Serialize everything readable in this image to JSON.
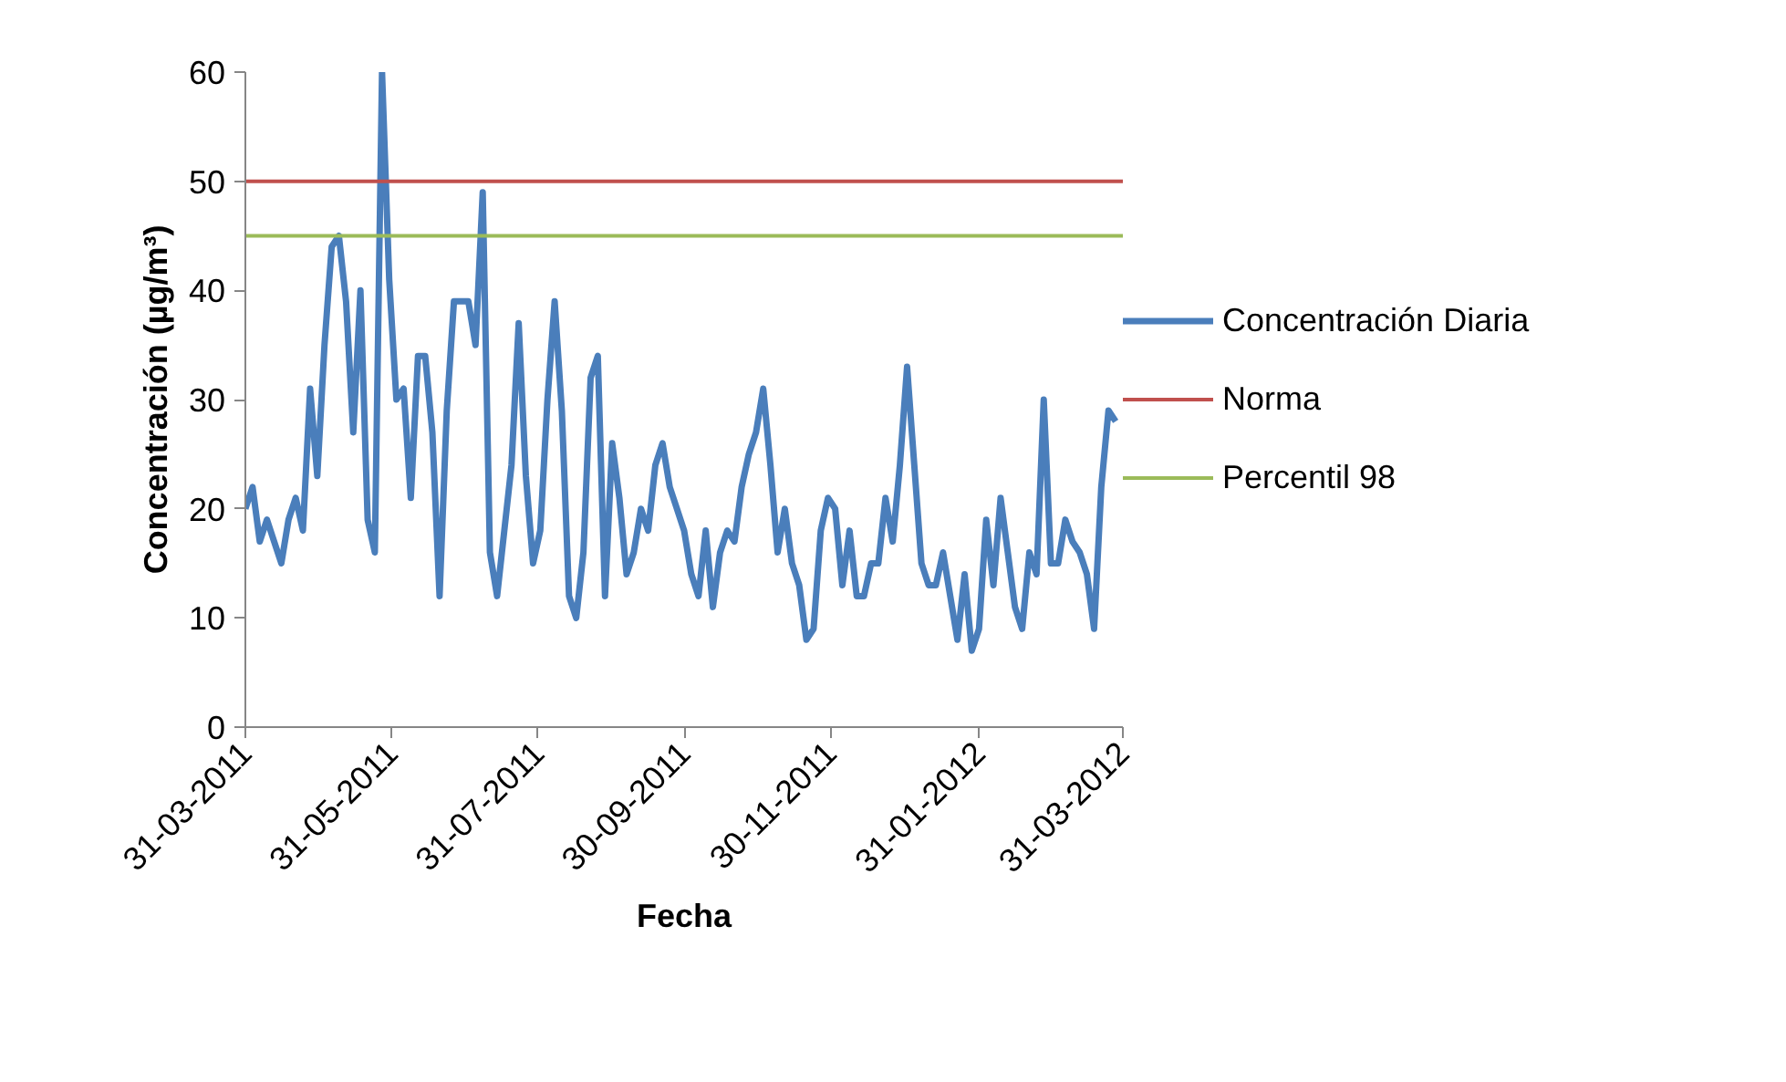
{
  "chart_data": {
    "type": "line",
    "xlabel": "Fecha",
    "ylabel": "Concentración (µg/m³)",
    "x": [
      "2011-03-31",
      "2011-04-03",
      "2011-04-06",
      "2011-04-09",
      "2011-04-12",
      "2011-04-15",
      "2011-04-18",
      "2011-04-21",
      "2011-04-24",
      "2011-04-27",
      "2011-04-30",
      "2011-05-03",
      "2011-05-06",
      "2011-05-09",
      "2011-05-12",
      "2011-05-15",
      "2011-05-18",
      "2011-05-21",
      "2011-05-24",
      "2011-05-27",
      "2011-05-30",
      "2011-06-02",
      "2011-06-05",
      "2011-06-08",
      "2011-06-11",
      "2011-06-14",
      "2011-06-17",
      "2011-06-20",
      "2011-06-23",
      "2011-06-26",
      "2011-06-29",
      "2011-07-02",
      "2011-07-05",
      "2011-07-08",
      "2011-07-11",
      "2011-07-14",
      "2011-07-17",
      "2011-07-20",
      "2011-07-23",
      "2011-07-26",
      "2011-07-29",
      "2011-08-01",
      "2011-08-04",
      "2011-08-07",
      "2011-08-10",
      "2011-08-13",
      "2011-08-16",
      "2011-08-19",
      "2011-08-22",
      "2011-08-25",
      "2011-08-28",
      "2011-08-31",
      "2011-09-03",
      "2011-09-06",
      "2011-09-09",
      "2011-09-12",
      "2011-09-15",
      "2011-09-18",
      "2011-09-21",
      "2011-09-24",
      "2011-09-27",
      "2011-09-30",
      "2011-10-03",
      "2011-10-06",
      "2011-10-09",
      "2011-10-12",
      "2011-10-15",
      "2011-10-18",
      "2011-10-21",
      "2011-10-24",
      "2011-10-27",
      "2011-10-30",
      "2011-11-02",
      "2011-11-05",
      "2011-11-08",
      "2011-11-11",
      "2011-11-14",
      "2011-11-17",
      "2011-11-20",
      "2011-11-23",
      "2011-11-26",
      "2011-11-29",
      "2011-12-02",
      "2011-12-05",
      "2011-12-08",
      "2011-12-11",
      "2011-12-14",
      "2011-12-17",
      "2011-12-20",
      "2011-12-23",
      "2011-12-26",
      "2011-12-29",
      "2012-01-01",
      "2012-01-04",
      "2012-01-07",
      "2012-01-10",
      "2012-01-13",
      "2012-01-16",
      "2012-01-19",
      "2012-01-22",
      "2012-01-25",
      "2012-01-28",
      "2012-01-31",
      "2012-02-03",
      "2012-02-06",
      "2012-02-09",
      "2012-02-12",
      "2012-02-15",
      "2012-02-18",
      "2012-02-21",
      "2012-02-24",
      "2012-02-27",
      "2012-03-01",
      "2012-03-04",
      "2012-03-07",
      "2012-03-10",
      "2012-03-13",
      "2012-03-16",
      "2012-03-19",
      "2012-03-22",
      "2012-03-25",
      "2012-03-28"
    ],
    "series": [
      {
        "name": "Concentración Diaria",
        "color": "#4a7ebb",
        "values": [
          20,
          22,
          17,
          19,
          17,
          15,
          19,
          21,
          18,
          31,
          23,
          35,
          44,
          45,
          39,
          27,
          40,
          19,
          16,
          60,
          41,
          30,
          31,
          21,
          34,
          34,
          27,
          12,
          29,
          39,
          39,
          39,
          35,
          49,
          16,
          12,
          18,
          24,
          37,
          23,
          15,
          18,
          30,
          39,
          29,
          12,
          10,
          16,
          32,
          34,
          12,
          26,
          21,
          14,
          16,
          20,
          18,
          24,
          26,
          22,
          20,
          18,
          14,
          12,
          18,
          11,
          16,
          18,
          17,
          22,
          25,
          27,
          31,
          24,
          16,
          20,
          15,
          13,
          8,
          9,
          18,
          21,
          20,
          13,
          18,
          12,
          12,
          15,
          15,
          21,
          17,
          24,
          33,
          24,
          15,
          13,
          13,
          16,
          12,
          8,
          14,
          7,
          9,
          19,
          13,
          21,
          16,
          11,
          9,
          16,
          14,
          30,
          15,
          15,
          19,
          17,
          16,
          14,
          9,
          22,
          29,
          28
        ]
      }
    ],
    "ref_lines": [
      {
        "axis": "y",
        "value": 50,
        "label": "Norma",
        "color": "#c0504d"
      },
      {
        "axis": "y",
        "value": 45,
        "label": "Percentil 98",
        "color": "#9bbb59"
      }
    ],
    "xlim": [
      "2011-03-31",
      "2012-03-31"
    ],
    "xticks": [
      {
        "value": "2011-03-31",
        "label": "31-03-2011"
      },
      {
        "value": "2011-05-31",
        "label": "31-05-2011"
      },
      {
        "value": "2011-07-31",
        "label": "31-07-2011"
      },
      {
        "value": "2011-09-30",
        "label": "30-09-2011"
      },
      {
        "value": "2011-11-30",
        "label": "30-11-2011"
      },
      {
        "value": "2012-01-31",
        "label": "31-01-2012"
      },
      {
        "value": "2012-03-31",
        "label": "31-03-2012"
      }
    ],
    "ylim": [
      0,
      60
    ],
    "yticks": [
      0,
      10,
      20,
      30,
      40,
      50,
      60
    ],
    "grid": false,
    "legend": "right",
    "marker": "none",
    "line_style": "solid"
  }
}
